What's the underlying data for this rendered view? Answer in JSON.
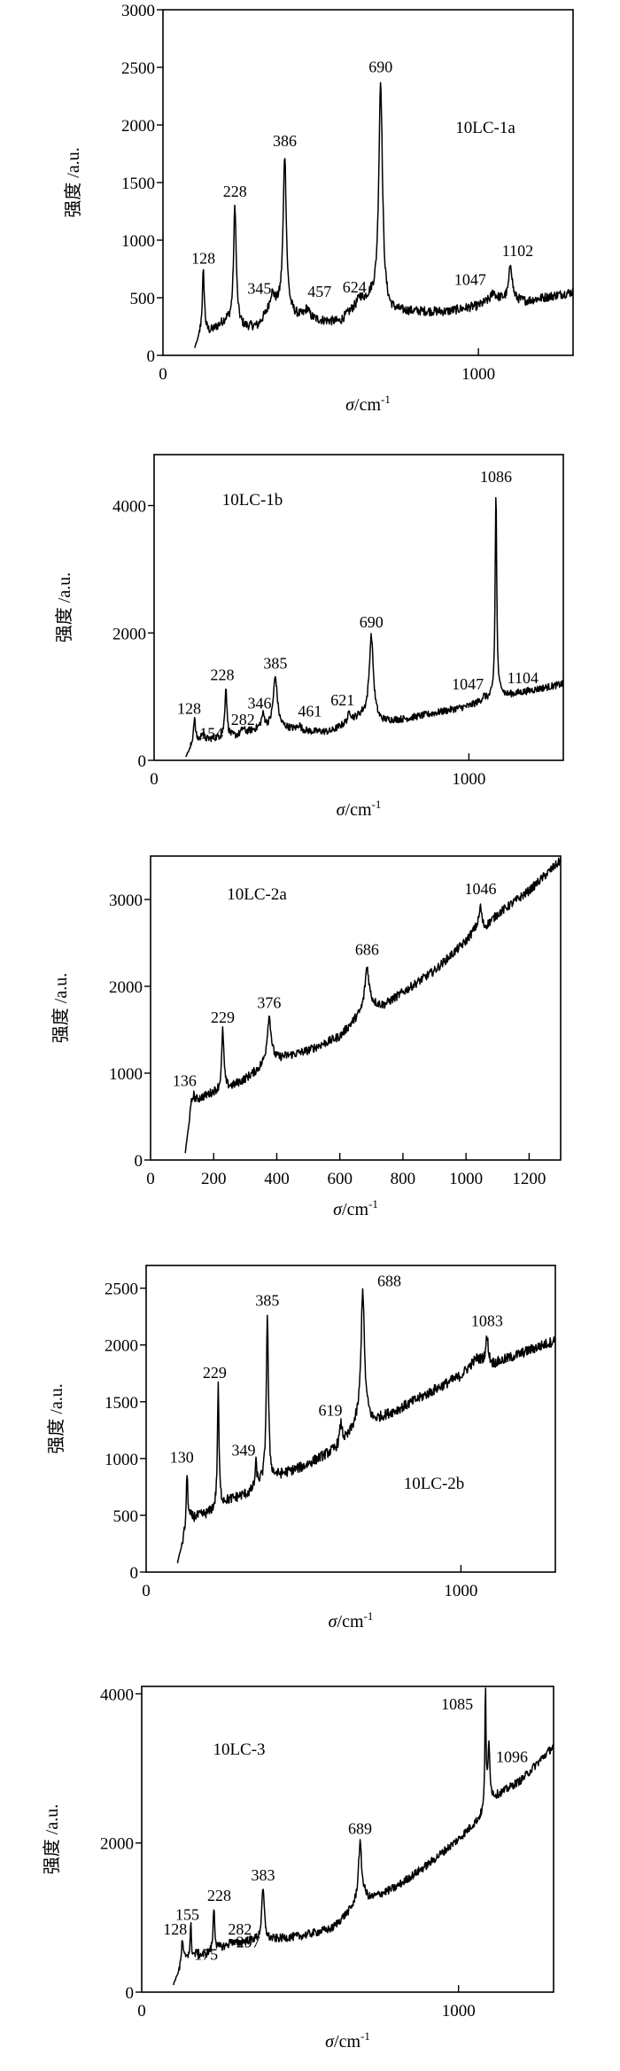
{
  "chart_data": [
    {
      "type": "line",
      "sample": "10LC-1a",
      "xlabel_symbol": "σ",
      "xlabel_unit": "/cm",
      "xlabel_exp": "-1",
      "ylabel": "强度 /a.u.",
      "xlim": [
        0,
        1300
      ],
      "ylim": [
        0,
        3000
      ],
      "xticks": [
        0,
        1000
      ],
      "yticks": [
        0,
        500,
        1000,
        1500,
        2000,
        2500,
        3000
      ],
      "grid": false,
      "baseline": [
        [
          100,
          50
        ],
        [
          120,
          180
        ],
        [
          150,
          200
        ],
        [
          200,
          300
        ],
        [
          260,
          240
        ],
        [
          300,
          250
        ],
        [
          350,
          430
        ],
        [
          420,
          340
        ],
        [
          500,
          300
        ],
        [
          560,
          290
        ],
        [
          620,
          450
        ],
        [
          660,
          500
        ],
        [
          720,
          380
        ],
        [
          900,
          380
        ],
        [
          1000,
          430
        ],
        [
          1050,
          500
        ],
        [
          1150,
          470
        ],
        [
          1300,
          550
        ]
      ],
      "noise": 40,
      "peaks": [
        {
          "label": "128",
          "x": 128,
          "y": 720,
          "w": 4
        },
        {
          "label": "228",
          "x": 228,
          "y": 1300,
          "w": 5
        },
        {
          "label": "345",
          "x": 345,
          "y": 520,
          "w": 8
        },
        {
          "label": "386",
          "x": 386,
          "y": 1740,
          "w": 6
        },
        {
          "label": "457",
          "x": 457,
          "y": 400,
          "w": 8
        },
        {
          "label": "624",
          "x": 624,
          "y": 500,
          "w": 6
        },
        {
          "label": "690",
          "x": 690,
          "y": 2380,
          "w": 7
        },
        {
          "label": "1047",
          "x": 1047,
          "y": 550,
          "w": 6
        },
        {
          "label": "1102",
          "x": 1102,
          "y": 800,
          "w": 6
        }
      ]
    },
    {
      "type": "line",
      "sample": "10LC-1b",
      "xlabel_symbol": "σ",
      "xlabel_unit": "/cm",
      "xlabel_exp": "-1",
      "ylabel": "强度 /a.u.",
      "xlim": [
        0,
        1300
      ],
      "ylim": [
        0,
        4800
      ],
      "xticks": [
        0,
        1000
      ],
      "yticks": [
        0,
        2000,
        4000
      ],
      "grid": false,
      "baseline": [
        [
          100,
          50
        ],
        [
          125,
          250
        ],
        [
          140,
          300
        ],
        [
          200,
          350
        ],
        [
          260,
          380
        ],
        [
          300,
          450
        ],
        [
          340,
          500
        ],
        [
          420,
          500
        ],
        [
          500,
          450
        ],
        [
          560,
          450
        ],
        [
          620,
          600
        ],
        [
          660,
          700
        ],
        [
          720,
          600
        ],
        [
          800,
          650
        ],
        [
          900,
          750
        ],
        [
          1000,
          850
        ],
        [
          1050,
          950
        ],
        [
          1100,
          1000
        ],
        [
          1300,
          1200
        ]
      ],
      "noise": 55,
      "peaks": [
        {
          "label": "128",
          "x": 128,
          "y": 650,
          "w": 4
        },
        {
          "label": "154",
          "x": 154,
          "y": 450,
          "w": 4
        },
        {
          "label": "228",
          "x": 228,
          "y": 1150,
          "w": 4
        },
        {
          "label": "282",
          "x": 282,
          "y": 500,
          "w": 5
        },
        {
          "label": "346",
          "x": 346,
          "y": 700,
          "w": 6
        },
        {
          "label": "385",
          "x": 385,
          "y": 1300,
          "w": 8
        },
        {
          "label": "461",
          "x": 461,
          "y": 550,
          "w": 6
        },
        {
          "label": "621",
          "x": 621,
          "y": 750,
          "w": 6
        },
        {
          "label": "690",
          "x": 690,
          "y": 1950,
          "w": 8
        },
        {
          "label": "1047",
          "x": 1047,
          "y": 1000,
          "w": 5
        },
        {
          "label": "1086",
          "x": 1086,
          "y": 4200,
          "w": 3
        },
        {
          "label": "1104",
          "x": 1104,
          "y": 1100,
          "w": 4
        }
      ]
    },
    {
      "type": "line",
      "sample": "10LC-2a",
      "xlabel_symbol": "σ",
      "xlabel_unit": "/cm",
      "xlabel_exp": "-1",
      "ylabel": "强度 /a.u.",
      "xlim": [
        0,
        1300
      ],
      "ylim": [
        0,
        3500
      ],
      "xticks": [
        0,
        200,
        400,
        600,
        800,
        1000,
        1200
      ],
      "yticks": [
        0,
        1000,
        2000,
        3000
      ],
      "grid": false,
      "baseline": [
        [
          110,
          80
        ],
        [
          130,
          650
        ],
        [
          150,
          700
        ],
        [
          200,
          780
        ],
        [
          260,
          850
        ],
        [
          300,
          930
        ],
        [
          360,
          1080
        ],
        [
          420,
          1180
        ],
        [
          500,
          1260
        ],
        [
          600,
          1420
        ],
        [
          650,
          1620
        ],
        [
          700,
          1780
        ],
        [
          740,
          1780
        ],
        [
          800,
          1930
        ],
        [
          900,
          2180
        ],
        [
          1000,
          2520
        ],
        [
          1040,
          2720
        ],
        [
          1060,
          2680
        ],
        [
          1100,
          2830
        ],
        [
          1200,
          3100
        ],
        [
          1300,
          3450
        ]
      ],
      "noise": 50,
      "peaks": [
        {
          "label": "136",
          "x": 136,
          "y": 750,
          "w": 4
        },
        {
          "label": "229",
          "x": 229,
          "y": 1500,
          "w": 4
        },
        {
          "label": "376",
          "x": 376,
          "y": 1650,
          "w": 8
        },
        {
          "label": "686",
          "x": 686,
          "y": 2220,
          "w": 8
        },
        {
          "label": "1046",
          "x": 1046,
          "y": 2920,
          "w": 4
        }
      ]
    },
    {
      "type": "line",
      "sample": "10LC-2b",
      "xlabel_symbol": "σ",
      "xlabel_unit": "/cm",
      "xlabel_exp": "-1",
      "ylabel": "强度 /a.u.",
      "xlim": [
        0,
        1300
      ],
      "ylim": [
        0,
        2700
      ],
      "xticks": [
        0,
        1000
      ],
      "yticks": [
        0,
        500,
        1000,
        1500,
        2000,
        2500
      ],
      "grid": false,
      "baseline": [
        [
          100,
          80
        ],
        [
          120,
          300
        ],
        [
          140,
          470
        ],
        [
          200,
          520
        ],
        [
          250,
          620
        ],
        [
          330,
          700
        ],
        [
          360,
          780
        ],
        [
          400,
          830
        ],
        [
          500,
          930
        ],
        [
          600,
          1080
        ],
        [
          640,
          1180
        ],
        [
          690,
          1420
        ],
        [
          720,
          1330
        ],
        [
          800,
          1430
        ],
        [
          900,
          1580
        ],
        [
          1000,
          1730
        ],
        [
          1050,
          1880
        ],
        [
          1100,
          1830
        ],
        [
          1300,
          2040
        ]
      ],
      "noise": 45,
      "peaks": [
        {
          "label": "130",
          "x": 130,
          "y": 870,
          "w": 3
        },
        {
          "label": "229",
          "x": 229,
          "y": 1630,
          "w": 3
        },
        {
          "label": "349",
          "x": 349,
          "y": 950,
          "w": 3
        },
        {
          "label": "385",
          "x": 385,
          "y": 2250,
          "w": 4
        },
        {
          "label": "619",
          "x": 619,
          "y": 1300,
          "w": 5
        },
        {
          "label": "688",
          "x": 688,
          "y": 2500,
          "w": 6
        },
        {
          "label": "1083",
          "x": 1083,
          "y": 2070,
          "w": 5
        }
      ]
    },
    {
      "type": "line",
      "sample": "10LC-3",
      "xlabel_symbol": "σ",
      "xlabel_unit": "/cm",
      "xlabel_exp": "-1",
      "ylabel": "强度 /a.u.",
      "xlim": [
        0,
        1300
      ],
      "ylim": [
        0,
        4100
      ],
      "xticks": [
        0,
        1000
      ],
      "yticks": [
        0,
        2000,
        4000
      ],
      "grid": false,
      "baseline": [
        [
          100,
          100
        ],
        [
          120,
          300
        ],
        [
          140,
          480
        ],
        [
          200,
          500
        ],
        [
          250,
          600
        ],
        [
          300,
          650
        ],
        [
          350,
          700
        ],
        [
          400,
          700
        ],
        [
          500,
          750
        ],
        [
          600,
          850
        ],
        [
          660,
          1100
        ],
        [
          700,
          1300
        ],
        [
          720,
          1250
        ],
        [
          800,
          1400
        ],
        [
          900,
          1700
        ],
        [
          1000,
          2050
        ],
        [
          1060,
          2300
        ],
        [
          1080,
          2400
        ],
        [
          1110,
          2600
        ],
        [
          1200,
          2850
        ],
        [
          1300,
          3300
        ]
      ],
      "noise": 55,
      "peaks": [
        {
          "label": "128",
          "x": 128,
          "y": 700,
          "w": 3
        },
        {
          "label": "155",
          "x": 155,
          "y": 900,
          "w": 2
        },
        {
          "label": "175",
          "x": 175,
          "y": 550,
          "w": 3
        },
        {
          "label": "228",
          "x": 228,
          "y": 1150,
          "w": 3
        },
        {
          "label": "282",
          "x": 282,
          "y": 700,
          "w": 4
        },
        {
          "label": "297",
          "x": 297,
          "y": 650,
          "w": 4
        },
        {
          "label": "383",
          "x": 383,
          "y": 1380,
          "w": 5
        },
        {
          "label": "689",
          "x": 689,
          "y": 2000,
          "w": 6
        },
        {
          "label": "1085",
          "x": 1085,
          "y": 4100,
          "w": 2
        },
        {
          "label": "1096",
          "x": 1096,
          "y": 3300,
          "w": 4
        }
      ]
    }
  ]
}
